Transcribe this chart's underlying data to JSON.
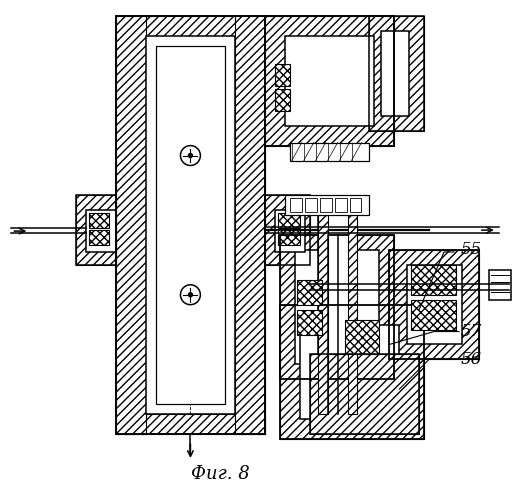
{
  "title": "Фиг. 8",
  "label_55": "55",
  "label_56": "56",
  "label_57": "57",
  "bg_color": "#ffffff",
  "line_color": "#000000",
  "linewidth": 1.1,
  "figsize": [
    5.29,
    5.0
  ],
  "dpi": 100
}
